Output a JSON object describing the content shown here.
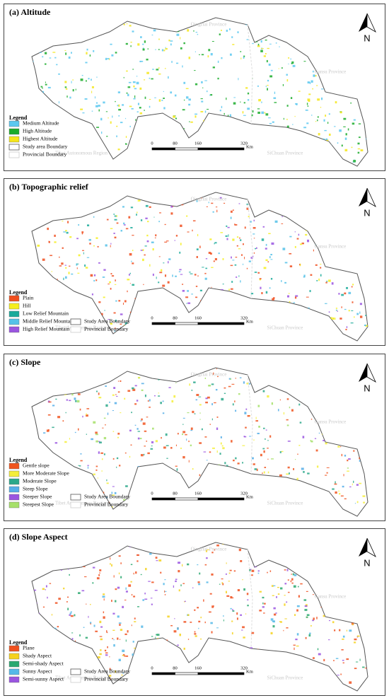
{
  "panels": [
    {
      "title": "(a) Altitude",
      "legend_title": "Legend",
      "legend": [
        {
          "label": "Medium Altitude",
          "color": "#5bc8f0"
        },
        {
          "label": "High Altitude",
          "color": "#1aab2a"
        },
        {
          "label": "Highest Altitude",
          "color": "#f5e61a"
        }
      ],
      "boundaries": [
        "Study area Boundary",
        "Provincial Boundary"
      ],
      "provinces": [
        "QingHai Province",
        "Gansu Province",
        "Tibet Autonomous Region",
        "SiChuan Province"
      ],
      "scale": [
        0,
        80,
        160,
        320
      ],
      "unit": "Km",
      "north": "N"
    },
    {
      "title": "(b) Topographic relief",
      "legend_title": "Legend",
      "legend": [
        {
          "label": "Plain",
          "color": "#f04e1e"
        },
        {
          "label": "Hill",
          "color": "#f5ee1e"
        },
        {
          "label": "Low Relief Mountain",
          "color": "#1aaa9a"
        },
        {
          "label": "Middle Relief Mountain",
          "color": "#55c1e8"
        },
        {
          "label": "High Relief Mountain",
          "color": "#9a55e0"
        }
      ],
      "boundaries": [
        "Study Area Boundary",
        "Provincial Boundary"
      ],
      "provinces": [
        "QingHai Province",
        "Gansu Province",
        "Tibet Autonomous Region",
        "SiChuan Province"
      ],
      "scale": [
        0,
        80,
        160,
        320
      ],
      "unit": "Km",
      "north": "N"
    },
    {
      "title": "(c) Slope",
      "legend_title": "Legend",
      "legend": [
        {
          "label": "Gentle slope",
          "color": "#f0541e"
        },
        {
          "label": "More Moderate Slope",
          "color": "#f5ee3a"
        },
        {
          "label": "Moderate Slope",
          "color": "#2aa88a"
        },
        {
          "label": "Steep Slope",
          "color": "#55aee8"
        },
        {
          "label": "Steeper Slope",
          "color": "#9a55e0"
        },
        {
          "label": "Steepest Slope",
          "color": "#a6e06a"
        }
      ],
      "boundaries": [
        "Study Area Boundary",
        "Provincial Boundary"
      ],
      "provinces": [
        "QingHai Province",
        "Gansu Province",
        "Tibet Autonomous Region",
        "SiChuan Province"
      ],
      "scale": [
        0,
        80,
        160,
        320
      ],
      "unit": "Km",
      "north": "N"
    },
    {
      "title": "(d) Slope Aspect",
      "legend_title": "Legend",
      "legend": [
        {
          "label": "Plane",
          "color": "#f0501e"
        },
        {
          "label": "Shady Aspect",
          "color": "#f5d21e"
        },
        {
          "label": "Semi-shady Aspect",
          "color": "#2aa870"
        },
        {
          "label": "Sunny Aspect",
          "color": "#55b8e8"
        },
        {
          "label": "Semi-sunny Aspect",
          "color": "#9a55e0"
        }
      ],
      "boundaries": [
        "Study Area Boundary",
        "Provincial Boundary"
      ],
      "provinces": [
        "QingHai Province",
        "Gansu Province",
        "Tibet Autonomous Region",
        "SiChuan Province"
      ],
      "scale": [
        0,
        80,
        160,
        320
      ],
      "unit": "Km",
      "north": "N"
    }
  ]
}
